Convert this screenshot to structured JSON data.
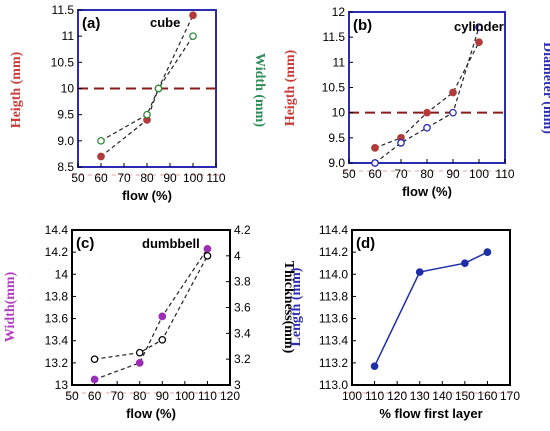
{
  "chart_data": [
    {
      "type": "line",
      "panel_label": "(a)",
      "title": "cube",
      "xlabel": "flow (%)",
      "ylabel": "Heigth (mm)",
      "ylabel_right": "Width (mm)",
      "xlim": [
        50,
        110
      ],
      "ylim": [
        8.5,
        11.5
      ],
      "ylim_right": [
        8.5,
        11.5
      ],
      "xticks": [
        50,
        60,
        70,
        80,
        90,
        100,
        110
      ],
      "yticks": [
        8.5,
        9.0,
        9.5,
        10,
        10.5,
        11,
        11.5
      ],
      "ytick_labels": [
        "8.5",
        "9.0",
        "9.5",
        "10",
        "10.5",
        "11",
        "11.5"
      ],
      "yticks_right": [],
      "reference_line": 10,
      "colors": {
        "frame": "#2b2bb3",
        "left_axis": "#c83c3c",
        "right_axis": "#2e8b57"
      },
      "series": [
        {
          "axis": "left",
          "marker": "filled",
          "color": "#b23a3a",
          "x": [
            60,
            80,
            85,
            100
          ],
          "values": [
            8.7,
            9.4,
            10.0,
            11.4
          ]
        },
        {
          "axis": "right",
          "marker": "open",
          "color": "#2e8b3a",
          "x": [
            60,
            80,
            85,
            100
          ],
          "values": [
            9.0,
            9.5,
            10.0,
            11.0
          ]
        }
      ]
    },
    {
      "type": "line",
      "panel_label": "(b)",
      "title": "cylinder",
      "xlabel": "flow (%)",
      "ylabel": "Heigth (mm)",
      "ylabel_right": "Diameter (mm)",
      "xlim": [
        50,
        110
      ],
      "ylim": [
        9.0,
        12.0
      ],
      "ylim_right": [
        9.0,
        12.0
      ],
      "xticks": [
        50,
        60,
        70,
        80,
        90,
        100,
        110
      ],
      "yticks": [
        9.0,
        9.5,
        10,
        10.5,
        11,
        11.5,
        12
      ],
      "ytick_labels": [
        "9.0",
        "9.5",
        "10",
        "10.5",
        "11",
        "11.5",
        "12"
      ],
      "yticks_right": [],
      "reference_line": 10,
      "colors": {
        "frame": "#2b2bb3",
        "left_axis": "#c83c3c",
        "right_axis": "#2b2bb3"
      },
      "series": [
        {
          "axis": "left",
          "marker": "filled",
          "color": "#b23a3a",
          "x": [
            60,
            70,
            80,
            90,
            100
          ],
          "values": [
            9.3,
            9.5,
            10.0,
            10.4,
            11.4
          ]
        },
        {
          "axis": "right",
          "marker": "open",
          "color": "#2b2bb3",
          "x": [
            60,
            70,
            80,
            90,
            100
          ],
          "values": [
            9.0,
            9.4,
            9.7,
            10.0,
            11.7
          ]
        }
      ]
    },
    {
      "type": "line",
      "panel_label": "(c)",
      "title": "dumbbell",
      "xlabel": "flow (%)",
      "ylabel": "Width(mm)",
      "ylabel_right": "Thickness(mm)",
      "xlim": [
        50,
        120
      ],
      "ylim": [
        13.0,
        14.4
      ],
      "ylim_right": [
        3.0,
        4.2
      ],
      "xticks": [
        50,
        60,
        70,
        80,
        90,
        100,
        110,
        120
      ],
      "yticks": [
        13,
        13.2,
        13.4,
        13.6,
        13.8,
        14,
        14.2,
        14.4
      ],
      "ytick_labels": [
        "13",
        "13.2",
        "13.4",
        "13.6",
        "13.8",
        "14",
        "14.2",
        "14.4"
      ],
      "yticks_right": [
        3,
        3.2,
        3.4,
        3.6,
        3.8,
        4,
        4.2
      ],
      "ytick_labels_right": [
        "3",
        "3.2",
        "3.4",
        "3.6",
        "3.8",
        "4",
        "4.2"
      ],
      "reference_line": null,
      "colors": {
        "frame": "#000000",
        "left_axis": "#b040c0",
        "right_axis": "#000000"
      },
      "series": [
        {
          "axis": "left",
          "marker": "filled",
          "color": "#9a2fb5",
          "x": [
            60,
            80,
            90,
            110
          ],
          "values": [
            13.05,
            13.2,
            13.62,
            14.23
          ]
        },
        {
          "axis": "right",
          "marker": "open",
          "color": "#000000",
          "x": [
            60,
            80,
            90,
            110
          ],
          "values": [
            3.2,
            3.25,
            3.35,
            4.0
          ]
        }
      ]
    },
    {
      "type": "line",
      "panel_label": "(d)",
      "title": "",
      "xlabel": "% flow first layer",
      "ylabel": "Length (mm)",
      "ylabel_right": "",
      "xlim": [
        100,
        170
      ],
      "ylim": [
        113.0,
        114.4
      ],
      "ylim_right": null,
      "xticks": [
        100,
        110,
        120,
        130,
        140,
        150,
        160,
        170
      ],
      "yticks": [
        113.0,
        113.2,
        113.4,
        113.6,
        113.8,
        114.0,
        114.2,
        114.4
      ],
      "ytick_labels": [
        "113.0",
        "113.2",
        "113.4",
        "113.6",
        "113.8",
        "114.0",
        "114.2",
        "114.4"
      ],
      "yticks_right": [],
      "reference_line": null,
      "colors": {
        "frame": "#000000",
        "left_axis": "#2b2bb3",
        "right_axis": "#000000"
      },
      "series": [
        {
          "axis": "left",
          "marker": "filled",
          "color": "#1f2fa8",
          "x": [
            110,
            130,
            150,
            160
          ],
          "values": [
            113.17,
            114.02,
            114.1,
            114.2
          ]
        }
      ]
    }
  ]
}
